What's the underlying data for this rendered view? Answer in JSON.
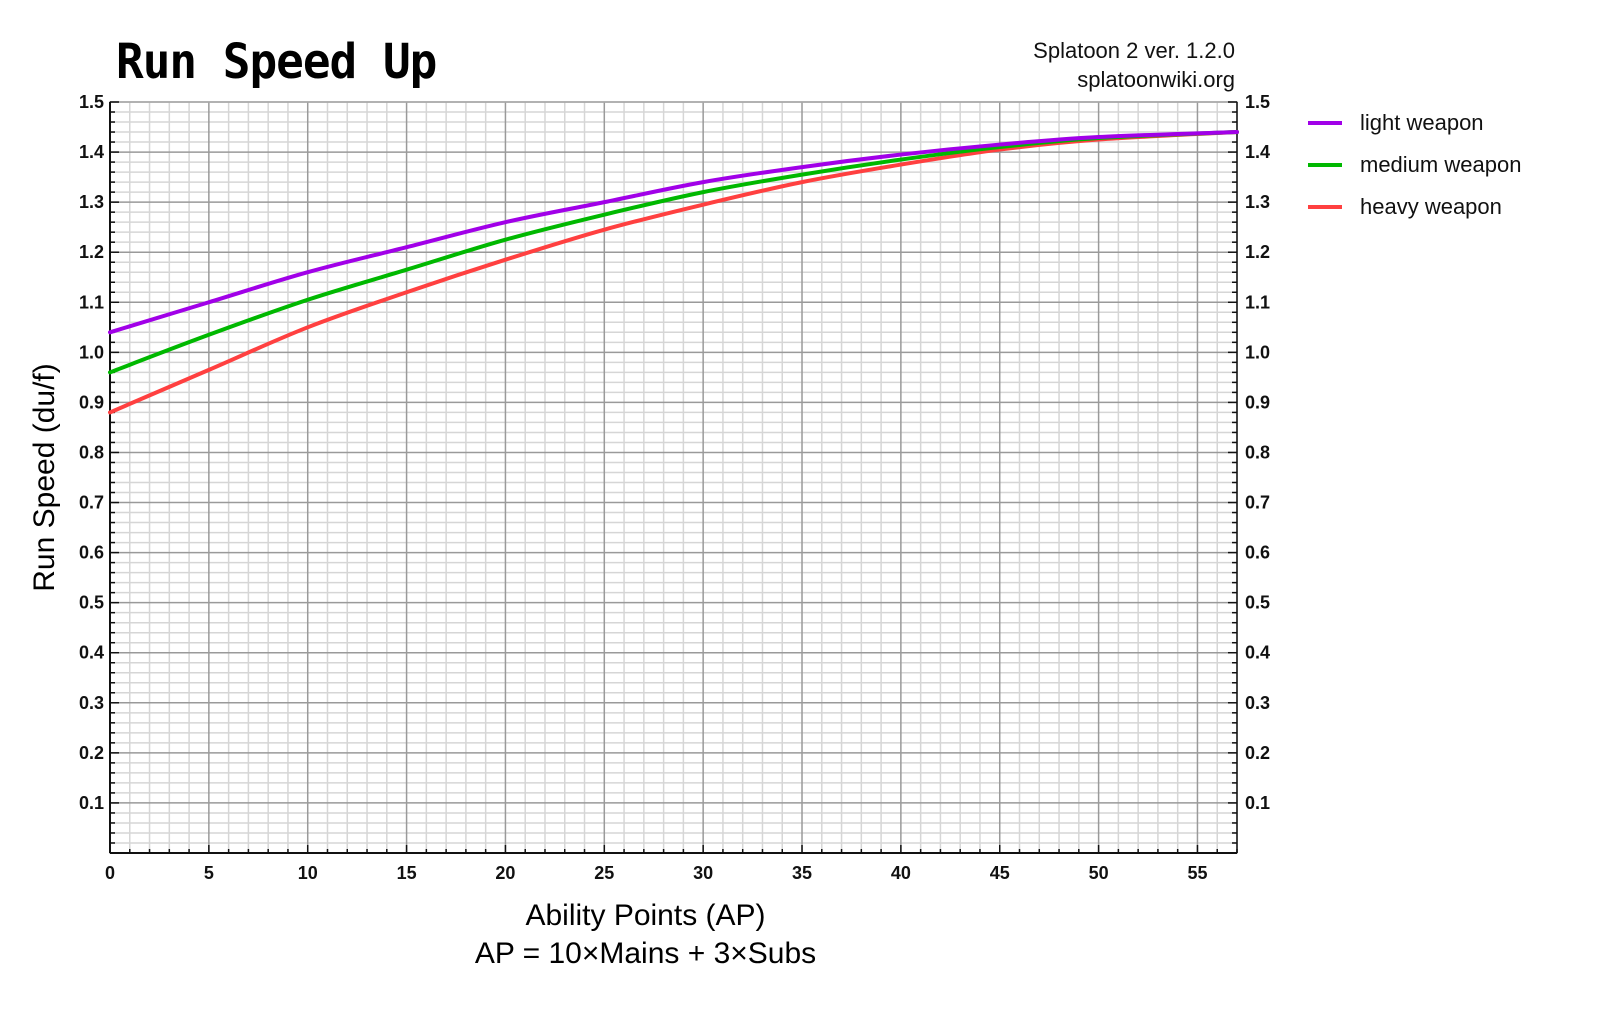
{
  "chart_data": {
    "type": "line",
    "title": "Run Speed Up",
    "source_lines": [
      "Splatoon 2 ver. 1.2.0",
      "splatoonwiki.org"
    ],
    "xlabel": "Ability Points (AP)",
    "xlabel2": "AP = 10×Mains + 3×Subs",
    "ylabel": "Run Speed (du/f)",
    "xlim": [
      0,
      57
    ],
    "ylim": [
      0,
      1.5
    ],
    "x_ticks": [
      "0",
      "5",
      "10",
      "15",
      "20",
      "25",
      "30",
      "35",
      "40",
      "45",
      "50",
      "55"
    ],
    "y_ticks": [
      "0.1",
      "0.2",
      "0.3",
      "0.4",
      "0.5",
      "0.6",
      "0.7",
      "0.8",
      "0.9",
      "1.0",
      "1.1",
      "1.2",
      "1.3",
      "1.4",
      "1.5"
    ],
    "grid": true,
    "legend_position": "right",
    "x": [
      0,
      5,
      10,
      15,
      20,
      25,
      30,
      35,
      40,
      45,
      50,
      57
    ],
    "series": [
      {
        "name": "light weapon",
        "color": "#a100e8",
        "values": [
          1.04,
          1.1,
          1.16,
          1.21,
          1.26,
          1.3,
          1.34,
          1.37,
          1.395,
          1.415,
          1.43,
          1.44
        ]
      },
      {
        "name": "medium weapon",
        "color": "#00b800",
        "values": [
          0.96,
          1.035,
          1.105,
          1.165,
          1.225,
          1.275,
          1.32,
          1.355,
          1.385,
          1.41,
          1.428,
          1.44
        ]
      },
      {
        "name": "heavy weapon",
        "color": "#ff4040",
        "values": [
          0.88,
          0.965,
          1.05,
          1.12,
          1.185,
          1.245,
          1.295,
          1.34,
          1.375,
          1.405,
          1.425,
          1.44
        ]
      }
    ]
  }
}
